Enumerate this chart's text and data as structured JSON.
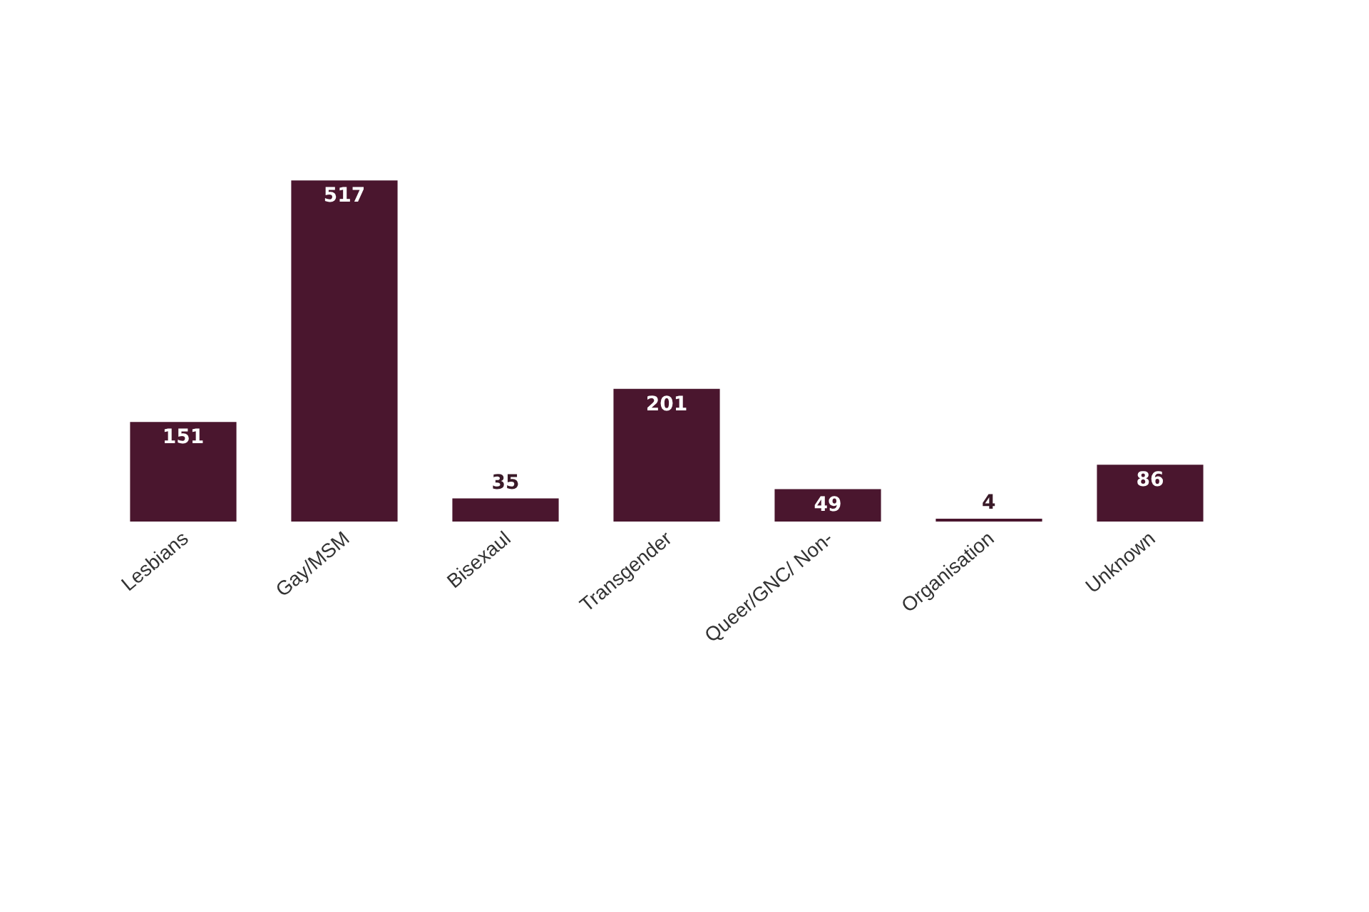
{
  "chart_data": {
    "type": "bar",
    "categories": [
      "Lesbians",
      "Gay/MSM",
      "Bisexaul",
      "Transgender",
      "Queer/GNC/ Non-",
      "Organisation",
      "Unknown"
    ],
    "values": [
      151,
      517,
      35,
      201,
      49,
      4,
      86
    ],
    "color": "#4a162e",
    "data_labels": true
  }
}
